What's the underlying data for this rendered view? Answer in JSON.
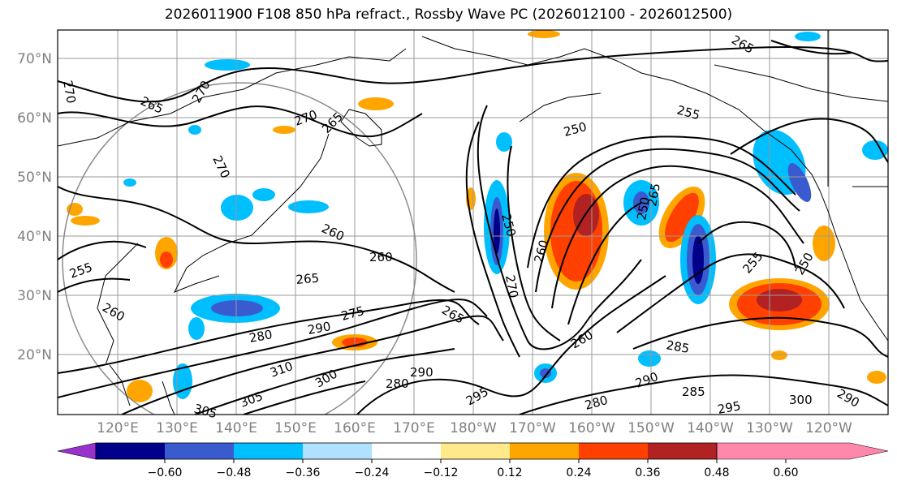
{
  "title": "2026011900 F108 850 hPa refract., Rossby Wave PC (2026012100 - 2026012500)",
  "map": {
    "lat_labels": [
      "70°N",
      "60°N",
      "50°N",
      "40°N",
      "30°N",
      "20°N"
    ],
    "lon_labels": [
      "120°E",
      "130°E",
      "140°E",
      "150°E",
      "160°E",
      "170°E",
      "180°W",
      "170°W",
      "160°W",
      "150°W",
      "140°W",
      "130°W",
      "120°W"
    ],
    "contour_labels": [
      "270",
      "265",
      "270",
      "270",
      "265",
      "270",
      "260",
      "255",
      "260",
      "265",
      "260",
      "275",
      "280",
      "290",
      "310",
      "300",
      "305",
      "305",
      "290",
      "280",
      "250",
      "270",
      "260",
      "250",
      "265",
      "250",
      "255",
      "265",
      "260",
      "255",
      "265",
      "250",
      "285",
      "290",
      "285",
      "280",
      "295",
      "295",
      "300",
      "290"
    ],
    "colors": {
      "label_gray": "#808080",
      "coast": "#000000"
    }
  },
  "colorbar": {
    "ticks": [
      "−0.60",
      "−0.48",
      "−0.36",
      "−0.24",
      "−0.12",
      "0.12",
      "0.24",
      "0.36",
      "0.48",
      "0.60"
    ],
    "colors": [
      "#9932cc",
      "#00008b",
      "#3a5bd0",
      "#00bfff",
      "#b0e2ff",
      "#ffffff",
      "#ffe98a",
      "#ffa500",
      "#ff4000",
      "#b22222",
      "#ff88aa"
    ]
  }
}
